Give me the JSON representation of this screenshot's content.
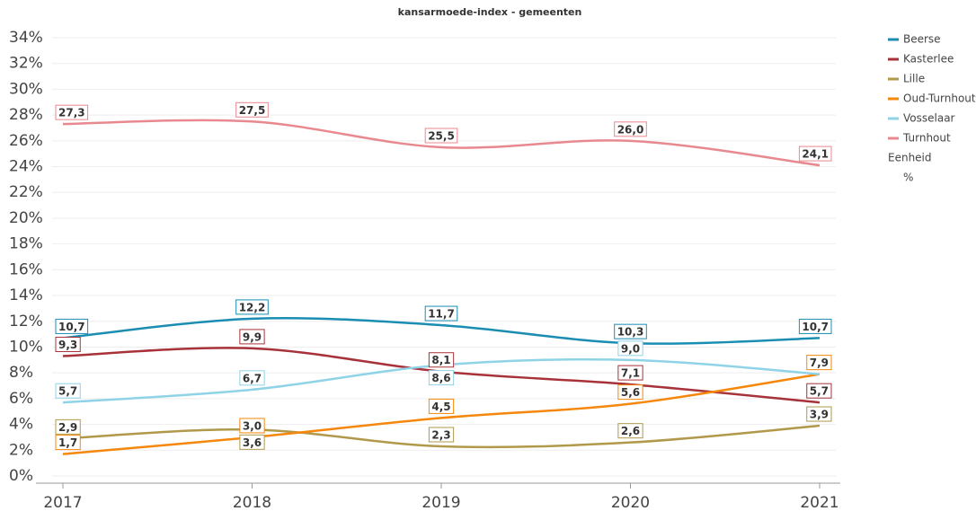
{
  "chart_data": {
    "type": "line",
    "title": "kansarmoede-index - gemeenten",
    "x": [
      2017,
      2018,
      2019,
      2020,
      2021
    ],
    "xticks": [
      2017,
      2018,
      2019,
      2020,
      2021
    ],
    "xlim": [
      2017,
      2021
    ],
    "ylim": [
      0,
      34
    ],
    "yticks": [
      {
        "value": 0,
        "label": "0%"
      },
      {
        "value": 2,
        "label": "2%"
      },
      {
        "value": 4,
        "label": "4%"
      },
      {
        "value": 6,
        "label": "6%"
      },
      {
        "value": 8,
        "label": "8%"
      },
      {
        "value": 10,
        "label": "10%"
      },
      {
        "value": 12,
        "label": "12%"
      },
      {
        "value": 14,
        "label": "14%"
      },
      {
        "value": 16,
        "label": "16%"
      },
      {
        "value": 18,
        "label": "18%"
      },
      {
        "value": 20,
        "label": "20%"
      },
      {
        "value": 22,
        "label": "22%"
      },
      {
        "value": 24,
        "label": "24%"
      },
      {
        "value": 26,
        "label": "26%"
      },
      {
        "value": 28,
        "label": "28%"
      },
      {
        "value": 30,
        "label": "30%"
      },
      {
        "value": 32,
        "label": "32%"
      },
      {
        "value": 34,
        "label": "34%"
      }
    ],
    "grid": true,
    "legend": "right",
    "unit_title": "Eenheid",
    "unit": "%",
    "series": [
      {
        "name": "Beerse",
        "color": "#1b8db3",
        "values": [
          10.7,
          12.2,
          11.7,
          10.3,
          10.7
        ],
        "value_labels": [
          "10,7",
          "12,2",
          "11,7",
          "10,3",
          "10,7"
        ]
      },
      {
        "name": "Kasterlee",
        "color": "#a8323a",
        "values": [
          9.3,
          9.9,
          8.1,
          7.1,
          5.7
        ],
        "value_labels": [
          "9,3",
          "9,9",
          "8,1",
          "7,1",
          "5,7"
        ]
      },
      {
        "name": "Lille",
        "color": "#b0994a",
        "values": [
          2.9,
          3.6,
          2.3,
          2.6,
          3.9
        ],
        "value_labels": [
          "2,9",
          "3,6",
          "2,3",
          "2,6",
          "3,9"
        ]
      },
      {
        "name": "Oud-Turnhout",
        "color": "#f5870c",
        "values": [
          1.7,
          3.0,
          4.5,
          5.6,
          7.9
        ],
        "value_labels": [
          "1,7",
          "3,0",
          "4,5",
          "5,6",
          "7,9"
        ]
      },
      {
        "name": "Vosselaar",
        "color": "#8fd3e6",
        "values": [
          5.7,
          6.7,
          8.6,
          9.0,
          7.9
        ],
        "value_labels": [
          "5,7",
          "6,7",
          "8,6",
          "9,0",
          null
        ]
      },
      {
        "name": "Turnhout",
        "color": "#e8888f",
        "values": [
          27.3,
          27.5,
          25.5,
          26.0,
          24.1
        ],
        "value_labels": [
          "27,3",
          "27,5",
          "25,5",
          "26,0",
          "24,1"
        ]
      }
    ]
  }
}
